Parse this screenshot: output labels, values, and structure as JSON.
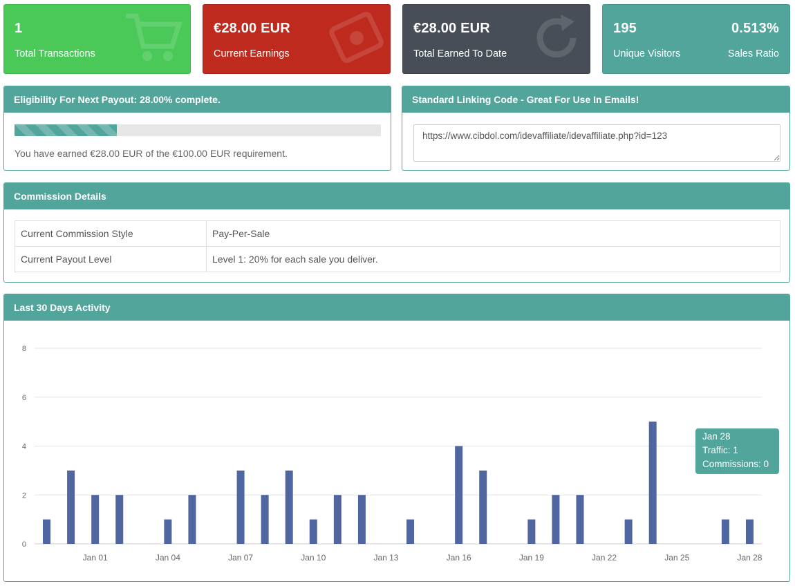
{
  "stats": [
    {
      "value": "1",
      "label": "Total Transactions",
      "icon": "shopping-cart-icon",
      "color": "#4ac959"
    },
    {
      "value": "€28.00 EUR",
      "label": "Current Earnings",
      "icon": "money-icon",
      "color": "#bf2a1e"
    },
    {
      "value": "€28.00 EUR",
      "label": "Total Earned To Date",
      "icon": "refresh-icon",
      "color": "#484e57"
    },
    {
      "value": "195",
      "label": "Unique Visitors",
      "value2": "0.513%",
      "label2": "Sales Ratio",
      "color": "#52a59b"
    }
  ],
  "payout": {
    "title": "Eligibility For Next Payout: 28.00% complete.",
    "progress_percent": 28,
    "text": "You have earned €28.00 EUR of the €100.00 EUR requirement."
  },
  "linking": {
    "title": "Standard Linking Code - Great For Use In Emails!",
    "code": "https://www.cibdol.com/idevaffiliate/idevaffiliate.php?id=123"
  },
  "commission": {
    "title": "Commission Details",
    "rows": [
      {
        "key": "Current Commission Style",
        "value": "Pay-Per-Sale"
      },
      {
        "key": "Current Payout Level",
        "value": "Level 1: 20% for each sale you deliver."
      }
    ]
  },
  "activity": {
    "title": "Last 30 Days Activity",
    "tooltip": {
      "line1": "Jan 28",
      "line2": "Traffic: 1",
      "line3": "Commissions: 0"
    }
  },
  "chart_data": {
    "type": "bar",
    "title": "Last 30 Days Activity",
    "ylim": [
      0,
      8
    ],
    "yticks": [
      0,
      2,
      4,
      6,
      8
    ],
    "xtick_labels": [
      "Jan 01",
      "Jan 04",
      "Jan 07",
      "Jan 10",
      "Jan 13",
      "Jan 16",
      "Jan 19",
      "Jan 22",
      "Jan 25",
      "Jan 28"
    ],
    "categories": [
      "Dec 30",
      "Dec 31",
      "Jan 01",
      "Jan 02",
      "Jan 03",
      "Jan 04",
      "Jan 05",
      "Jan 06",
      "Jan 07",
      "Jan 08",
      "Jan 09",
      "Jan 10",
      "Jan 11",
      "Jan 12",
      "Jan 13",
      "Jan 14",
      "Jan 15",
      "Jan 16",
      "Jan 17",
      "Jan 18",
      "Jan 19",
      "Jan 20",
      "Jan 21",
      "Jan 22",
      "Jan 23",
      "Jan 24",
      "Jan 25",
      "Jan 26",
      "Jan 27",
      "Jan 28"
    ],
    "series": [
      {
        "values": [
          1,
          3,
          2,
          2,
          0,
          1,
          2,
          0,
          3,
          2,
          3,
          1,
          2,
          2,
          0,
          1,
          0,
          4,
          3,
          0,
          1,
          2,
          2,
          0,
          1,
          5,
          0,
          0,
          1,
          1
        ]
      }
    ],
    "grid": true,
    "bar_color": "#4f66a1"
  }
}
